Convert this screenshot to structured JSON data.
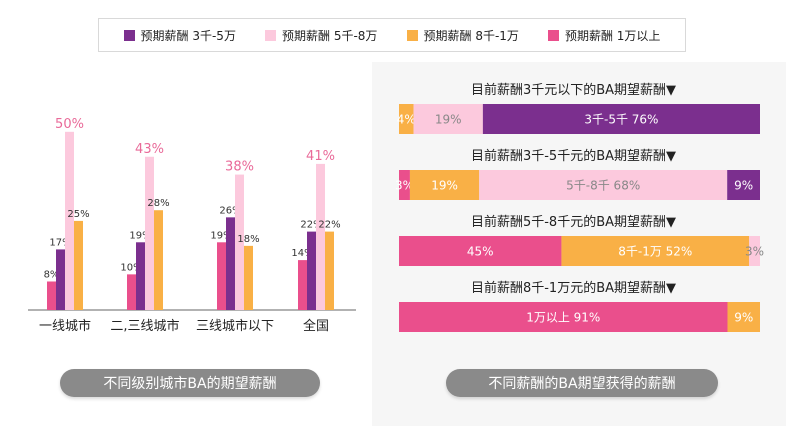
{
  "legend": [
    {
      "label": "预期薪酬 3千-5万",
      "color": "#7b2f8e"
    },
    {
      "label": "预期薪酬 5千-8万",
      "color": "#fcc9dd"
    },
    {
      "label": "预期薪酬 8千-1万",
      "color": "#f9b046"
    },
    {
      "label": "预期薪酬 1万以上",
      "color": "#ea4f8c"
    }
  ],
  "captions": {
    "left": "不同级别城市BA的期望薪酬",
    "right": "不同薪酬的BA期望获得的薪酬"
  },
  "chart_data": [
    {
      "type": "bar",
      "categories": [
        "一线城市",
        "二,三线城市",
        "三线城市以下",
        "全国"
      ],
      "series_order": [
        "预期薪酬 1万以上",
        "预期薪酬 3千-5万",
        "预期薪酬 5千-8万",
        "预期薪酬 8千-1万"
      ],
      "series": [
        {
          "name": "预期薪酬 1万以上",
          "color": "#ea4f8c",
          "values": [
            8,
            10,
            19,
            14
          ],
          "labels": [
            "8%",
            "10%",
            "19%",
            "14%"
          ]
        },
        {
          "name": "预期薪酬 3千-5万",
          "color": "#7b2f8e",
          "values": [
            17,
            19,
            26,
            22
          ],
          "labels": [
            "17%",
            "19%",
            "26%",
            "22%"
          ]
        },
        {
          "name": "预期薪酬 5千-8万",
          "color": "#fcc9dd",
          "values": [
            50,
            43,
            38,
            41
          ],
          "labels": [
            "50%",
            "43%",
            "38%",
            "41%"
          ]
        },
        {
          "name": "预期薪酬 8千-1万",
          "color": "#f9b046",
          "values": [
            25,
            28,
            18,
            22
          ],
          "labels": [
            "25%",
            "28%",
            "18%",
            "22%"
          ]
        }
      ],
      "ylim": [
        0,
        55
      ],
      "grid": false
    },
    {
      "type": "bar",
      "orientation": "horizontal",
      "stacked": true,
      "bars": [
        {
          "title": "目前薪酬3千元以下的BA期望薪酬▼",
          "segments": [
            {
              "value": 4,
              "label": "4%",
              "color": "#f9b046"
            },
            {
              "value": 19,
              "label": "19%",
              "color": "#fcc9dd"
            },
            {
              "value": 76,
              "label": "3千-5千  76%",
              "color": "#7b2f8e"
            }
          ]
        },
        {
          "title": "目前薪酬3千-5千元的BA期望薪酬▼",
          "segments": [
            {
              "value": 3,
              "label": "3%",
              "color": "#ea4f8c"
            },
            {
              "value": 19,
              "label": "19%",
              "color": "#f9b046"
            },
            {
              "value": 68,
              "label": "5千-8千  68%",
              "color": "#fcc9dd"
            },
            {
              "value": 9,
              "label": "9%",
              "color": "#7b2f8e"
            }
          ]
        },
        {
          "title": "目前薪酬5千-8千元的BA期望薪酬▼",
          "segments": [
            {
              "value": 45,
              "label": "45%",
              "color": "#ea4f8c"
            },
            {
              "value": 52,
              "label": "8千-1万  52%",
              "color": "#f9b046"
            },
            {
              "value": 3,
              "label": "3%",
              "color": "#fcc9dd"
            }
          ]
        },
        {
          "title": "目前薪酬8千-1万元的BA期望薪酬▼",
          "segments": [
            {
              "value": 91,
              "label": "1万以上  91%",
              "color": "#ea4f8c"
            },
            {
              "value": 9,
              "label": "9%",
              "color": "#f9b046"
            }
          ]
        }
      ]
    }
  ]
}
